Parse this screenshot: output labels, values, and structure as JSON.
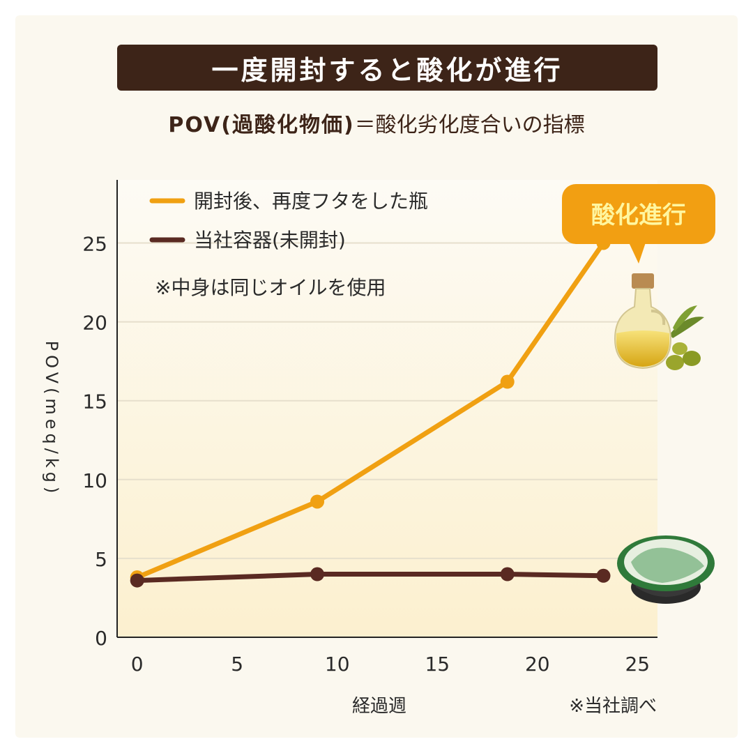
{
  "banner": {
    "title": "一度開封すると酸化が進行"
  },
  "subtitle": {
    "strong": "POV(過酸化物価)",
    "rest": "＝酸化劣化度合いの指標"
  },
  "callout": {
    "label": "酸化進行"
  },
  "note": "※中身は同じオイルを使用",
  "source_note": "※当社調べ",
  "colors": {
    "orange": "#f0a012",
    "brown": "#5a2a22",
    "banner": "#3d2418",
    "callout": "#f29f12"
  },
  "icons": {
    "bottle": "olive-oil-bottle-icon",
    "cup": "olive-oil-cup-icon"
  },
  "chart_data": {
    "type": "line",
    "xlabel": "経過週",
    "ylabel": "POV(meq/kg)",
    "xlim": [
      -1,
      26
    ],
    "ylim": [
      0,
      29
    ],
    "xticks": [
      0,
      5,
      10,
      15,
      20,
      25
    ],
    "yticks": [
      0,
      5,
      10,
      15,
      20,
      25
    ],
    "grid": true,
    "legend_position": "top-left",
    "series": [
      {
        "name": "開封後、再度フタをした瓶",
        "color": "#f0a012",
        "x": [
          0,
          9,
          18.5,
          23.3
        ],
        "y": [
          3.8,
          8.6,
          16.2,
          25.0
        ]
      },
      {
        "name": "当社容器(未開封)",
        "color": "#5a2a22",
        "x": [
          0,
          9,
          18.5,
          23.3
        ],
        "y": [
          3.6,
          4.0,
          4.0,
          3.9
        ]
      }
    ]
  }
}
